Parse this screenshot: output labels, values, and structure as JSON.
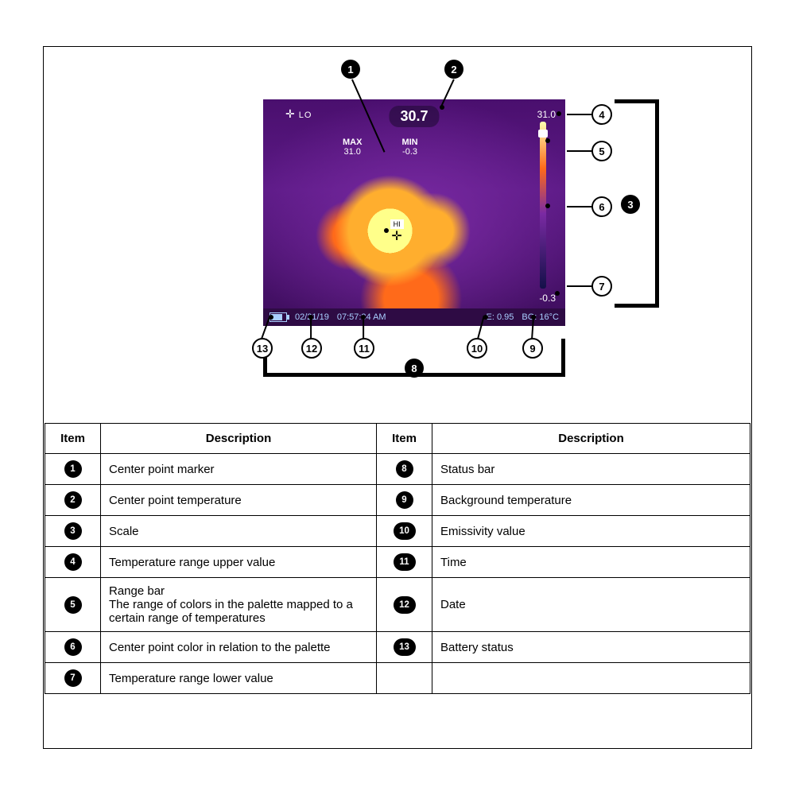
{
  "diagram": {
    "center_temp": "30.7",
    "scale_max": "31.0",
    "scale_min": "-0.3",
    "max_label": "MAX",
    "max_val": "31.0",
    "min_label": "MIN",
    "min_val": "-0.3",
    "lo_label": "LO",
    "hi_label": "HI",
    "status": {
      "date": "02/21/19",
      "time": "07:57:34 AM",
      "emissivity": "E: 0.95",
      "background": "BG: 16°C"
    },
    "callouts": [
      "1",
      "2",
      "3",
      "4",
      "5",
      "6",
      "7",
      "8",
      "9",
      "10",
      "11",
      "12",
      "13"
    ],
    "colors": {
      "thermal_bg_top": "#4a0f6e",
      "thermal_bg_mid": "#5c1a86",
      "thermal_bg_bot": "#3d0d5c",
      "hot_yellow": "#ffff8a",
      "hot_orange": "#ffae2e",
      "hot_red": "#ff6a1a",
      "status_bar": "#2e0b44",
      "status_text": "#a9cfff"
    }
  },
  "table": {
    "headers": [
      "Item",
      "Description",
      "Item",
      "Description"
    ],
    "rows": [
      {
        "n1": "1",
        "d1": "Center point marker",
        "n2": "8",
        "d2": "Status bar"
      },
      {
        "n1": "2",
        "d1": "Center point temperature",
        "n2": "9",
        "d2": "Background temperature"
      },
      {
        "n1": "3",
        "d1": "Scale",
        "n2": "10",
        "d2": "Emissivity value"
      },
      {
        "n1": "4",
        "d1": "Temperature range upper value",
        "n2": "11",
        "d2": "Time"
      },
      {
        "n1": "5",
        "d1": "Range bar\nThe range of colors in the palette mapped to a certain range of temperatures",
        "n2": "12",
        "d2": "Date"
      },
      {
        "n1": "6",
        "d1": "Center point color in relation to the palette",
        "n2": "13",
        "d2": "Battery status"
      },
      {
        "n1": "7",
        "d1": "Temperature range lower value",
        "n2": "",
        "d2": ""
      }
    ]
  }
}
